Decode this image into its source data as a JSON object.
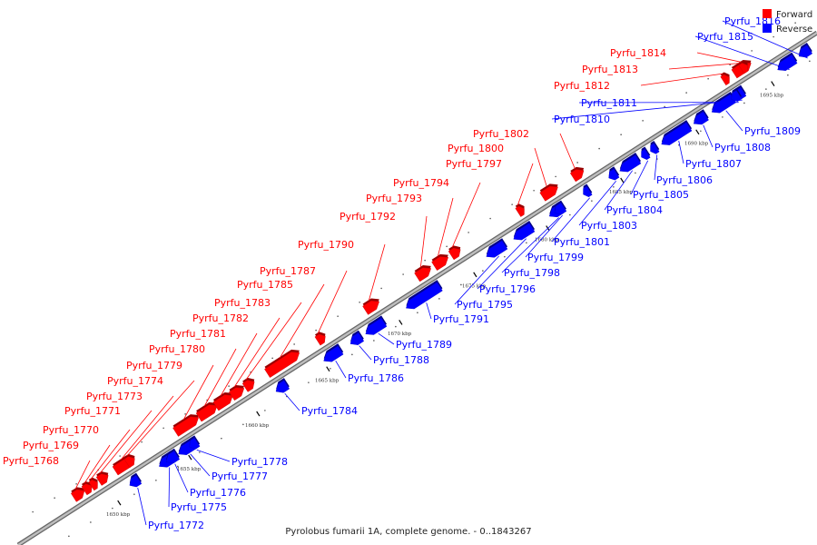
{
  "caption": "Pyrolobus fumarii 1A, complete genome. - 0..1843267",
  "legend": [
    {
      "label": "Forward",
      "color": "#ff0000"
    },
    {
      "label": "Reverse",
      "color": "#0000ff"
    }
  ],
  "colors": {
    "forward": "#ff0000",
    "reverse": "#0000ff",
    "backbone": "#808080"
  },
  "ticks": [
    "1650 kbp",
    "1655 kbp",
    "1660 kbp",
    "1665 kbp",
    "1670 kbp",
    "1675 kbp",
    "1680 kbp",
    "1685 kbp",
    "1690 kbp",
    "1695 kbp"
  ],
  "genes": [
    {
      "name": "Pyrfu_1768",
      "strand": "forward"
    },
    {
      "name": "Pyrfu_1769",
      "strand": "forward"
    },
    {
      "name": "Pyrfu_1770",
      "strand": "forward"
    },
    {
      "name": "Pyrfu_1771",
      "strand": "forward"
    },
    {
      "name": "Pyrfu_1772",
      "strand": "reverse"
    },
    {
      "name": "Pyrfu_1773",
      "strand": "forward"
    },
    {
      "name": "Pyrfu_1774",
      "strand": "forward"
    },
    {
      "name": "Pyrfu_1775",
      "strand": "reverse"
    },
    {
      "name": "Pyrfu_1776",
      "strand": "reverse"
    },
    {
      "name": "Pyrfu_1777",
      "strand": "reverse"
    },
    {
      "name": "Pyrfu_1778",
      "strand": "reverse"
    },
    {
      "name": "Pyrfu_1779",
      "strand": "forward"
    },
    {
      "name": "Pyrfu_1780",
      "strand": "forward"
    },
    {
      "name": "Pyrfu_1781",
      "strand": "forward"
    },
    {
      "name": "Pyrfu_1782",
      "strand": "forward"
    },
    {
      "name": "Pyrfu_1783",
      "strand": "forward"
    },
    {
      "name": "Pyrfu_1784",
      "strand": "reverse"
    },
    {
      "name": "Pyrfu_1785",
      "strand": "forward"
    },
    {
      "name": "Pyrfu_1786",
      "strand": "reverse"
    },
    {
      "name": "Pyrfu_1787",
      "strand": "forward"
    },
    {
      "name": "Pyrfu_1788",
      "strand": "reverse"
    },
    {
      "name": "Pyrfu_1789",
      "strand": "reverse"
    },
    {
      "name": "Pyrfu_1790",
      "strand": "forward"
    },
    {
      "name": "Pyrfu_1791",
      "strand": "reverse"
    },
    {
      "name": "Pyrfu_1792",
      "strand": "forward"
    },
    {
      "name": "Pyrfu_1793",
      "strand": "forward"
    },
    {
      "name": "Pyrfu_1794",
      "strand": "forward"
    },
    {
      "name": "Pyrfu_1795",
      "strand": "reverse"
    },
    {
      "name": "Pyrfu_1796",
      "strand": "reverse"
    },
    {
      "name": "Pyrfu_1797",
      "strand": "forward"
    },
    {
      "name": "Pyrfu_1798",
      "strand": "reverse"
    },
    {
      "name": "Pyrfu_1799",
      "strand": "reverse"
    },
    {
      "name": "Pyrfu_1800",
      "strand": "forward"
    },
    {
      "name": "Pyrfu_1801",
      "strand": "reverse"
    },
    {
      "name": "Pyrfu_1802",
      "strand": "forward"
    },
    {
      "name": "Pyrfu_1803",
      "strand": "reverse"
    },
    {
      "name": "Pyrfu_1804",
      "strand": "reverse"
    },
    {
      "name": "Pyrfu_1805",
      "strand": "reverse"
    },
    {
      "name": "Pyrfu_1806",
      "strand": "reverse"
    },
    {
      "name": "Pyrfu_1807",
      "strand": "reverse"
    },
    {
      "name": "Pyrfu_1808",
      "strand": "reverse"
    },
    {
      "name": "Pyrfu_1809",
      "strand": "reverse"
    },
    {
      "name": "Pyrfu_1810",
      "strand": "reverse"
    },
    {
      "name": "Pyrfu_1811",
      "strand": "reverse"
    },
    {
      "name": "Pyrfu_1812",
      "strand": "forward"
    },
    {
      "name": "Pyrfu_1813",
      "strand": "forward"
    },
    {
      "name": "Pyrfu_1814",
      "strand": "forward"
    },
    {
      "name": "Pyrfu_1815",
      "strand": "reverse"
    },
    {
      "name": "Pyrfu_1816",
      "strand": "reverse"
    }
  ]
}
